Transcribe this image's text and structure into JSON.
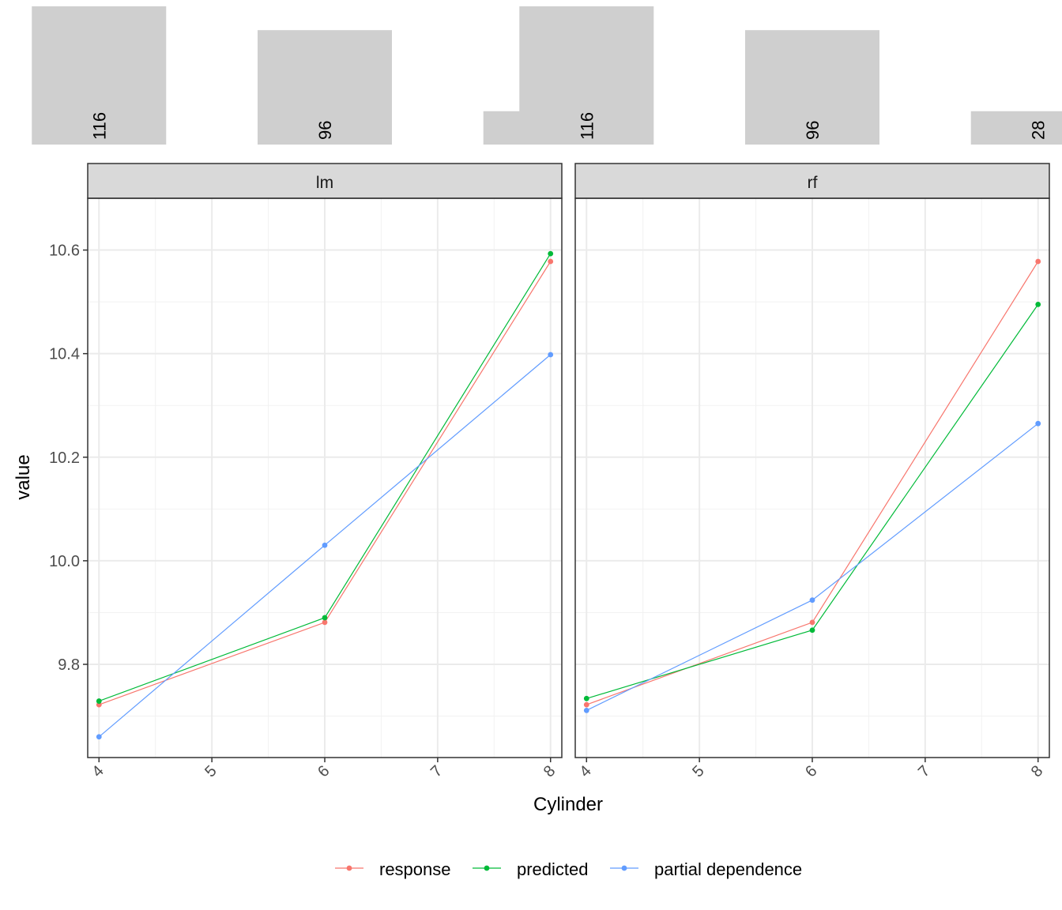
{
  "chart_data": {
    "type": "line",
    "xlabel": "Cylinder",
    "ylabel": "value",
    "x_ticks": [
      4,
      5,
      6,
      7,
      8
    ],
    "y_ticks": [
      9.8,
      10.0,
      10.2,
      10.4,
      10.6
    ],
    "y_tick_labels": [
      "9.8",
      "10.0",
      "10.2",
      "10.4",
      "10.6"
    ],
    "ylim": [
      9.62,
      10.7
    ],
    "xlim": [
      3.9,
      8.1
    ],
    "grid": true,
    "legend_position": "bottom",
    "legend": [
      {
        "name": "response",
        "color": "#F8766D"
      },
      {
        "name": "predicted",
        "color": "#00BA38"
      },
      {
        "name": "partial dependence",
        "color": "#619CFF"
      }
    ],
    "histogram": {
      "categories": [
        4,
        6,
        8
      ],
      "counts": [
        116,
        96,
        28
      ],
      "count_labels": [
        "116",
        "96",
        "28"
      ],
      "max": 120
    },
    "panels": [
      {
        "name": "lm",
        "x": [
          4,
          6,
          8
        ],
        "series": [
          {
            "name": "response",
            "values": [
              9.722,
              9.881,
              10.578
            ]
          },
          {
            "name": "predicted",
            "values": [
              9.729,
              9.89,
              10.593
            ]
          },
          {
            "name": "partial dependence",
            "values": [
              9.66,
              10.03,
              10.398
            ]
          }
        ]
      },
      {
        "name": "rf",
        "x": [
          4,
          6,
          8
        ],
        "series": [
          {
            "name": "response",
            "values": [
              9.722,
              9.881,
              10.578
            ]
          },
          {
            "name": "predicted",
            "values": [
              9.734,
              9.866,
              10.495
            ]
          },
          {
            "name": "partial dependence",
            "values": [
              9.711,
              9.924,
              10.265
            ]
          }
        ]
      }
    ]
  }
}
